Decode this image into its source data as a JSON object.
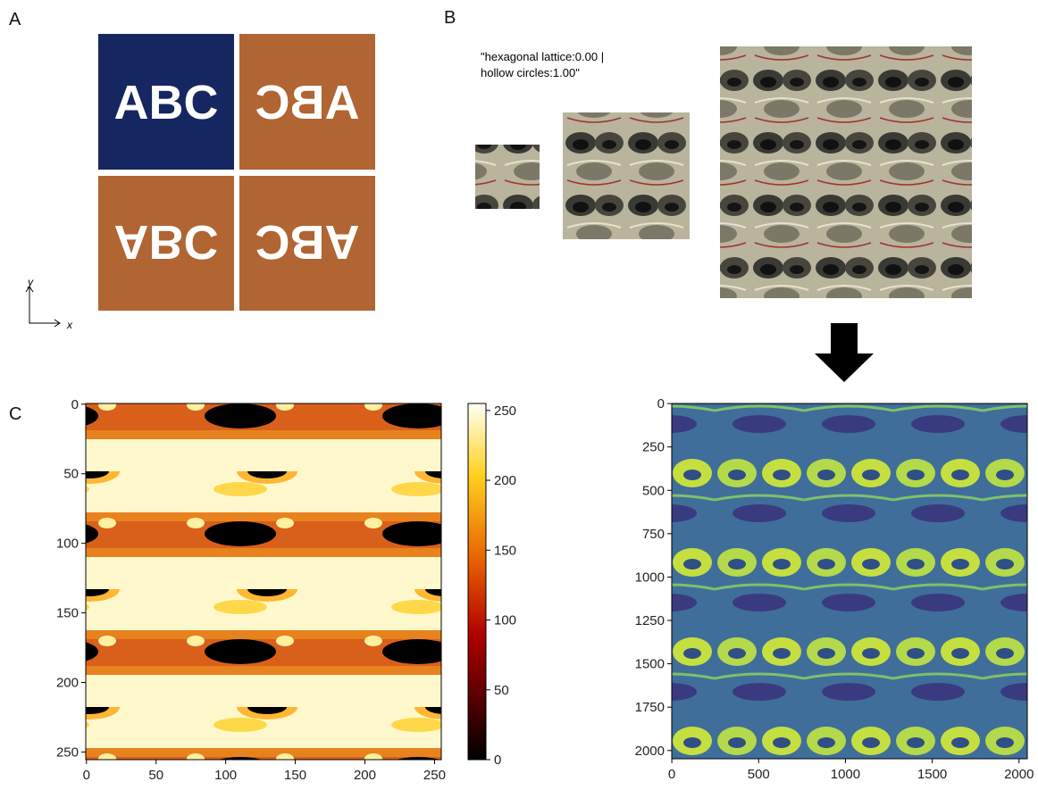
{
  "panels": {
    "a": "A",
    "b": "B",
    "c": "C"
  },
  "panel_a": {
    "tiles": [
      "ABC",
      "ABC",
      "ABC",
      "ABC"
    ],
    "axis_y": "y",
    "axis_x": "x"
  },
  "panel_b": {
    "caption_lines": [
      "\"hexagonal lattice:0.00 |",
      "hollow circles:1.00\""
    ]
  },
  "panel_c": {
    "left_image": {
      "xticks": [
        0,
        50,
        100,
        150,
        200,
        250
      ],
      "yticks": [
        0,
        50,
        100,
        150,
        200,
        250
      ],
      "extent": 256
    },
    "colorbar": {
      "ticks": [
        0,
        50,
        100,
        150,
        200,
        250
      ],
      "range": [
        0,
        255
      ]
    },
    "right_image": {
      "xticks": [
        0,
        500,
        1000,
        1500,
        2000
      ],
      "yticks": [
        0,
        250,
        500,
        750,
        1000,
        1250,
        1500,
        1750,
        2000
      ],
      "extent": 2048
    }
  }
}
